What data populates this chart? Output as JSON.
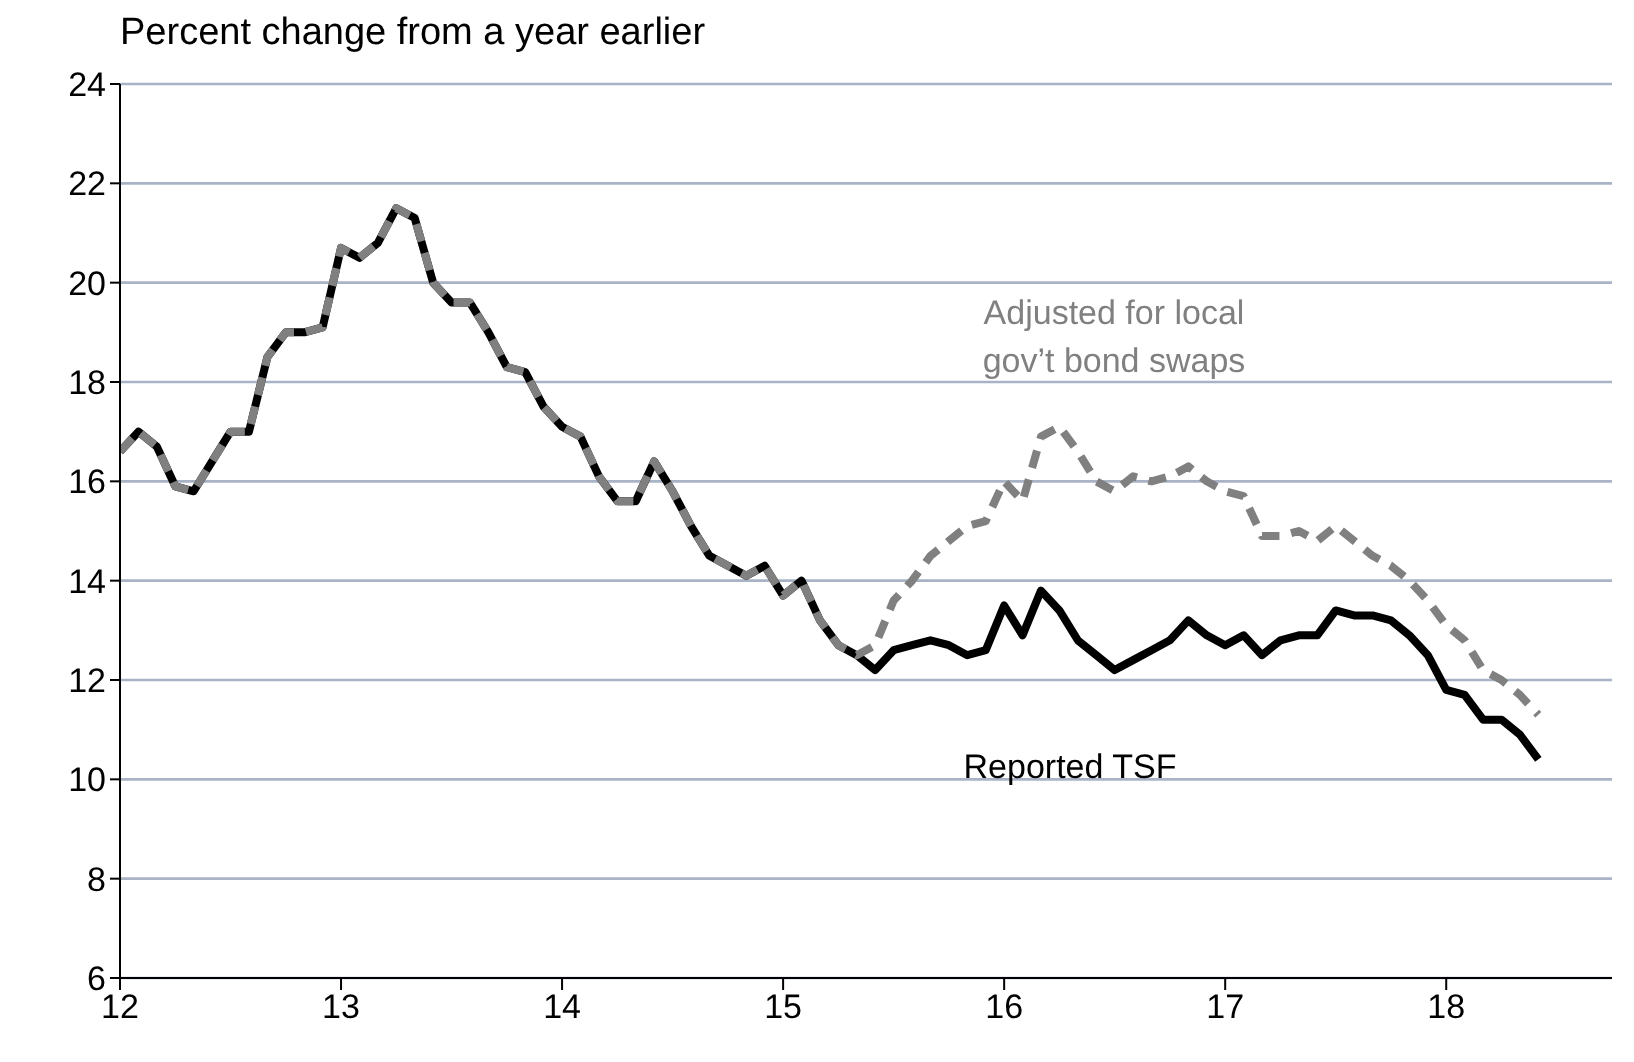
{
  "chart_data": {
    "type": "line",
    "ylabel": "Percent change from a year earlier",
    "x": [
      "2012-01",
      "2012-02",
      "2012-03",
      "2012-04",
      "2012-05",
      "2012-06",
      "2012-07",
      "2012-08",
      "2012-09",
      "2012-10",
      "2012-11",
      "2012-12",
      "2013-01",
      "2013-02",
      "2013-03",
      "2013-04",
      "2013-05",
      "2013-06",
      "2013-07",
      "2013-08",
      "2013-09",
      "2013-10",
      "2013-11",
      "2013-12",
      "2014-01",
      "2014-02",
      "2014-03",
      "2014-04",
      "2014-05",
      "2014-06",
      "2014-07",
      "2014-08",
      "2014-09",
      "2014-10",
      "2014-11",
      "2014-12",
      "2015-01",
      "2015-02",
      "2015-03",
      "2015-04",
      "2015-05",
      "2015-06",
      "2015-07",
      "2015-08",
      "2015-09",
      "2015-10",
      "2015-11",
      "2015-12",
      "2016-01",
      "2016-02",
      "2016-03",
      "2016-04",
      "2016-05",
      "2016-06",
      "2016-07",
      "2016-08",
      "2016-09",
      "2016-10",
      "2016-11",
      "2016-12",
      "2017-01",
      "2017-02",
      "2017-03",
      "2017-04",
      "2017-05",
      "2017-06",
      "2017-07",
      "2017-08",
      "2017-09",
      "2017-10",
      "2017-11",
      "2017-12",
      "2018-01",
      "2018-02",
      "2018-03",
      "2018-04",
      "2018-05",
      "2018-06"
    ],
    "series": [
      {
        "name": "Reported TSF",
        "color": "#000000",
        "line_style": "solid",
        "values": [
          16.6,
          17.0,
          16.7,
          15.9,
          15.8,
          16.4,
          17.0,
          17.0,
          18.5,
          19.0,
          19.0,
          19.1,
          20.7,
          20.5,
          20.8,
          21.5,
          21.3,
          20.0,
          19.6,
          19.6,
          19.0,
          18.3,
          18.2,
          17.5,
          17.1,
          16.9,
          16.1,
          15.6,
          15.6,
          16.4,
          15.8,
          15.1,
          14.5,
          14.3,
          14.1,
          14.3,
          13.7,
          14.0,
          13.2,
          12.7,
          12.5,
          12.2,
          12.6,
          12.7,
          12.8,
          12.7,
          12.5,
          12.6,
          13.5,
          12.9,
          13.8,
          13.4,
          12.8,
          12.5,
          12.2,
          12.4,
          12.6,
          12.8,
          13.2,
          12.9,
          12.7,
          12.9,
          12.5,
          12.8,
          12.9,
          12.9,
          13.4,
          13.3,
          13.3,
          13.2,
          12.9,
          12.5,
          11.8,
          11.7,
          11.2,
          11.2,
          10.9,
          10.4
        ]
      },
      {
        "name": "Adjusted for local gov’t bond swaps",
        "color": "#808080",
        "line_style": "dashed",
        "values": [
          16.6,
          17.0,
          16.7,
          15.9,
          15.8,
          16.4,
          17.0,
          17.0,
          18.5,
          19.0,
          19.0,
          19.1,
          20.7,
          20.5,
          20.8,
          21.5,
          21.3,
          20.0,
          19.6,
          19.6,
          19.0,
          18.3,
          18.2,
          17.5,
          17.1,
          16.9,
          16.1,
          15.6,
          15.6,
          16.4,
          15.8,
          15.1,
          14.5,
          14.3,
          14.1,
          14.3,
          13.7,
          14.0,
          13.2,
          12.7,
          12.5,
          12.7,
          13.6,
          14.0,
          14.5,
          14.8,
          15.1,
          15.2,
          16.0,
          15.6,
          16.9,
          17.1,
          16.6,
          16.0,
          15.8,
          16.1,
          16.0,
          16.1,
          16.3,
          16.0,
          15.8,
          15.7,
          14.9,
          14.9,
          15.0,
          14.8,
          15.1,
          14.8,
          14.5,
          14.3,
          14.0,
          13.6,
          13.1,
          12.8,
          12.2,
          12.0,
          11.7,
          11.3
        ]
      }
    ],
    "xlim": [
      "2012-01",
      "2018-10"
    ],
    "xticks": [
      {
        "value": "2012-01",
        "label": "12"
      },
      {
        "value": "2013-01",
        "label": "13"
      },
      {
        "value": "2014-01",
        "label": "14"
      },
      {
        "value": "2015-01",
        "label": "15"
      },
      {
        "value": "2016-01",
        "label": "16"
      },
      {
        "value": "2017-01",
        "label": "17"
      },
      {
        "value": "2018-01",
        "label": "18"
      }
    ],
    "ylim": [
      6,
      24
    ],
    "yticks": [
      6,
      8,
      10,
      12,
      14,
      16,
      18,
      20,
      22,
      24
    ],
    "grid": "y",
    "legend": false,
    "marker": "none"
  }
}
